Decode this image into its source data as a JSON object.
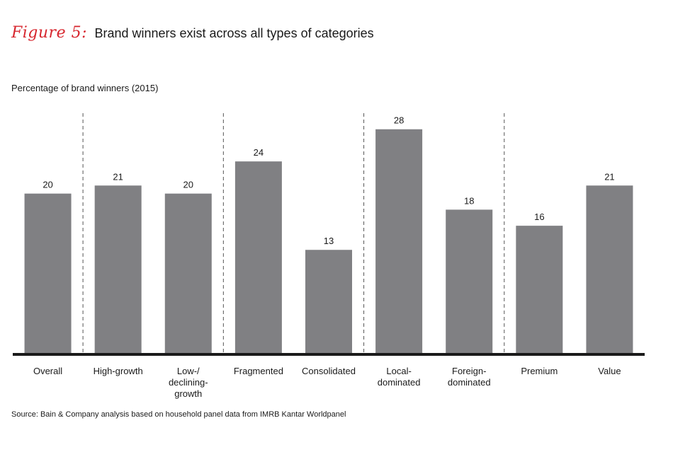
{
  "figure_label": "Figure 5:",
  "title": "Brand winners exist across all types of categories",
  "ylabel": "Percentage of brand winners (2015)",
  "source": "Source: Bain & Company analysis based on household panel data from IMRB Kantar Worldpanel",
  "colors": {
    "bar": "#808083",
    "axis": "#1a1a1a",
    "divider": "#555555",
    "accent": "#d7262e"
  },
  "chart_data": {
    "type": "bar",
    "categories": [
      "Overall",
      "High-growth",
      "Low-/ declining- growth",
      "Fragmented",
      "Consolidated",
      "Local- dominated",
      "Foreign- dominated",
      "Premium",
      "Value"
    ],
    "category_lines": [
      [
        "Overall"
      ],
      [
        "High-growth"
      ],
      [
        "Low-/",
        "declining-",
        "growth"
      ],
      [
        "Fragmented"
      ],
      [
        "Consolidated"
      ],
      [
        "Local-",
        "dominated"
      ],
      [
        "Foreign-",
        "dominated"
      ],
      [
        "Premium"
      ],
      [
        "Value"
      ]
    ],
    "values": [
      20,
      21,
      20,
      24,
      13,
      28,
      18,
      16,
      21
    ],
    "ylabel": "Percentage of brand winners (2015)",
    "ylim": [
      0,
      30
    ],
    "group_dividers_after": [
      0,
      2,
      4,
      6
    ],
    "grid": false,
    "legend": "none"
  }
}
